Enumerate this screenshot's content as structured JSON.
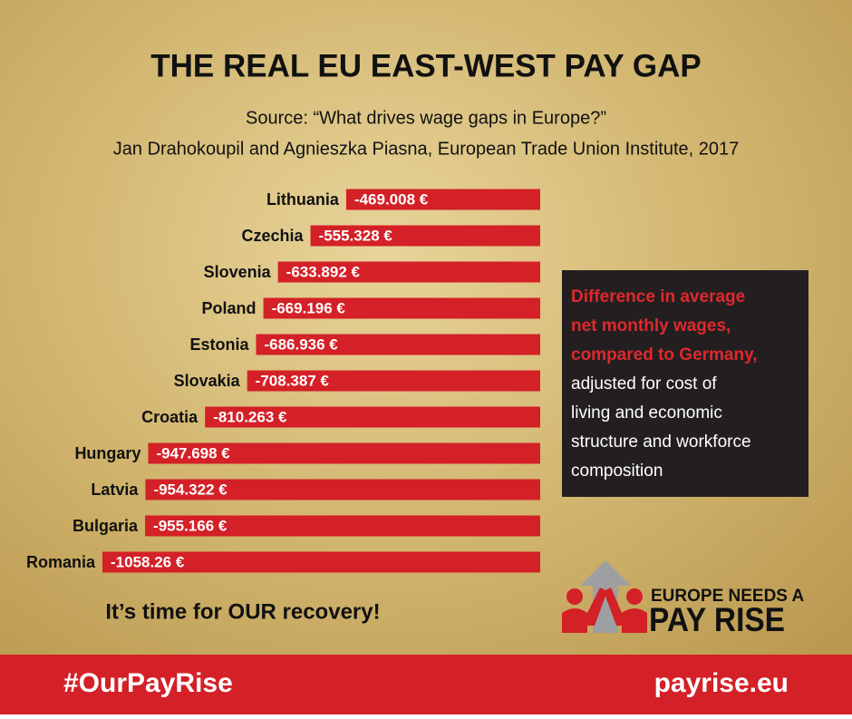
{
  "header": {
    "title": "THE REAL EU EAST-WEST PAY GAP",
    "source": "Source: “What drives wage gaps in Europe?”",
    "authors": "Jan Drahokoupil and Agnieszka Piasna, European Trade Union Institute, 2017"
  },
  "chart_data": {
    "type": "bar",
    "orientation": "horizontal",
    "color": "#d42027",
    "categories": [
      "Lithuania",
      "Czechia",
      "Slovenia",
      "Poland",
      "Estonia",
      "Slovakia",
      "Croatia",
      "Hungary",
      "Latvia",
      "Bulgaria",
      "Romania"
    ],
    "values": [
      -469.008,
      -555.328,
      -633.892,
      -669.196,
      -686.936,
      -708.387,
      -810.263,
      -947.698,
      -954.322,
      -955.166,
      -1058.26
    ],
    "value_labels": [
      "-469.008 €",
      "-555.328 €",
      "-633.892 €",
      "-669.196 €",
      "-686.936 €",
      "-708.387 €",
      "-810.263 €",
      "-947.698 €",
      "-954.322 €",
      "-955.166 €",
      "-1058.26 €"
    ]
  },
  "info_box": {
    "highlight_lines": [
      "Difference in average",
      "net monthly wages,",
      "compared to Germany,"
    ],
    "lines": [
      "adjusted for cost of",
      "living and economic",
      "structure and workforce",
      "composition"
    ]
  },
  "tagline": "It’s time for OUR recovery!",
  "logo": {
    "line1": "EUROPE NEEDS A",
    "line2": "PAY RISE"
  },
  "footer": {
    "hashtag": "#OurPayRise",
    "url": "payrise.eu"
  }
}
